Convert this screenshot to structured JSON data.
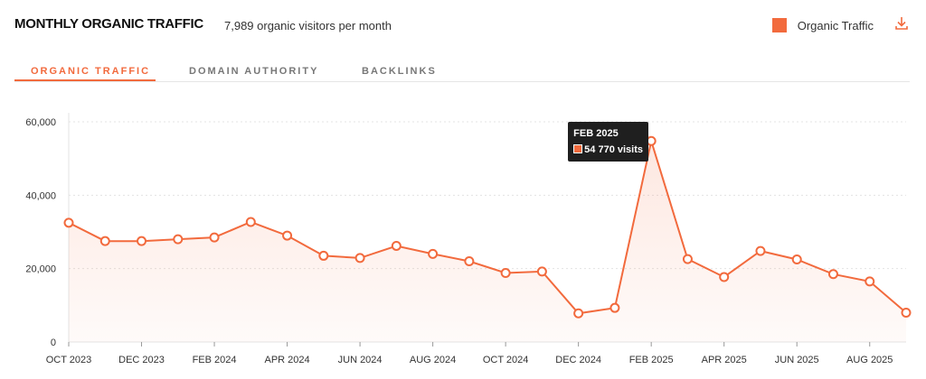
{
  "header": {
    "title": "MONTHLY ORGANIC TRAFFIC",
    "subtitle": "7,989 organic visitors per month",
    "legend_label": "Organic Traffic",
    "download_icon": "download-icon"
  },
  "tabs": [
    {
      "label": "ORGANIC TRAFFIC",
      "active": true
    },
    {
      "label": "DOMAIN AUTHORITY",
      "active": false
    },
    {
      "label": "BACKLINKS",
      "active": false
    }
  ],
  "colors": {
    "accent": "#f26a3d",
    "tooltip_bg": "#1f1f1f"
  },
  "tooltip": {
    "title": "FEB 2025",
    "value_text": "54 770 visits",
    "month": "2025-02"
  },
  "chart_data": {
    "type": "area",
    "title": "MONTHLY ORGANIC TRAFFIC",
    "series": [
      {
        "name": "Organic Traffic",
        "x": [
          "2023-10",
          "2023-11",
          "2023-12",
          "2024-01",
          "2024-02",
          "2024-03",
          "2024-04",
          "2024-05",
          "2024-06",
          "2024-07",
          "2024-08",
          "2024-09",
          "2024-10",
          "2024-11",
          "2024-12",
          "2025-01",
          "2025-02",
          "2025-03",
          "2025-04",
          "2025-05",
          "2025-06",
          "2025-07",
          "2025-08",
          "2025-09"
        ],
        "values": [
          32500,
          27500,
          27500,
          28000,
          28500,
          32700,
          29000,
          23500,
          22900,
          26200,
          24000,
          22000,
          18800,
          19200,
          7800,
          9300,
          54770,
          22600,
          17700,
          24800,
          22500,
          18500,
          16500,
          7989
        ]
      }
    ],
    "xticks": [
      "OCT 2023",
      "DEC 2023",
      "FEB 2024",
      "APR 2024",
      "JUN 2024",
      "AUG 2024",
      "OCT 2024",
      "DEC 2024",
      "FEB 2025",
      "APR 2025",
      "JUN 2025",
      "AUG 2025"
    ],
    "yticks": [
      "0",
      "20,000",
      "40,000",
      "60,000"
    ],
    "ylim": [
      0,
      60000
    ],
    "grid": true,
    "legend": "top-right"
  }
}
